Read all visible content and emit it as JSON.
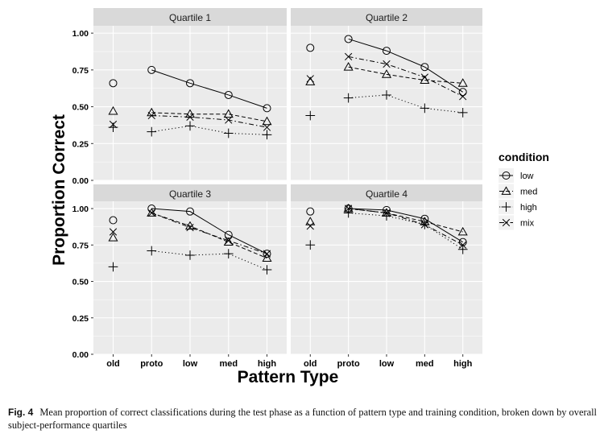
{
  "figure": {
    "caption_label": "Fig. 4",
    "caption_text": "Mean proportion of correct classifications during the test phase as a function of pattern type and training condition, broken down by overall subject-performance quartiles"
  },
  "chart_data": {
    "type": "line",
    "xlabel": "Pattern Type",
    "ylabel": "Proportion Correct",
    "categories": [
      "old",
      "proto",
      "low",
      "med",
      "high"
    ],
    "ylim": [
      0,
      1.05
    ],
    "yticks": [
      "0.00",
      "0.25",
      "0.50",
      "0.75",
      "1.00"
    ],
    "grid": true,
    "legend": {
      "title": "condition",
      "position": "right",
      "entries": [
        "low",
        "med",
        "high",
        "mix"
      ]
    },
    "series_styles": {
      "low": {
        "marker": "circle",
        "line": "solid"
      },
      "med": {
        "marker": "triangle",
        "line": "dashed"
      },
      "high": {
        "marker": "plus",
        "line": "dotted"
      },
      "mix": {
        "marker": "cross",
        "line": "dashdot"
      }
    },
    "colors": {
      "panel": "#ebebeb",
      "strip": "#d9d9d9",
      "grid": "#ffffff",
      "ink": "#000000"
    },
    "panels": [
      {
        "title": "Quartile 1",
        "series": [
          {
            "name": "low",
            "values": [
              0.66,
              0.75,
              0.66,
              0.58,
              0.49
            ]
          },
          {
            "name": "med",
            "values": [
              0.47,
              0.46,
              0.45,
              0.45,
              0.4
            ]
          },
          {
            "name": "high",
            "values": [
              0.36,
              0.33,
              0.37,
              0.32,
              0.31
            ]
          },
          {
            "name": "mix",
            "values": [
              0.38,
              0.44,
              0.43,
              0.41,
              0.36
            ]
          }
        ]
      },
      {
        "title": "Quartile 2",
        "series": [
          {
            "name": "low",
            "values": [
              0.9,
              0.96,
              0.88,
              0.77,
              0.6
            ]
          },
          {
            "name": "med",
            "values": [
              0.67,
              0.77,
              0.72,
              0.68,
              0.66
            ]
          },
          {
            "name": "high",
            "values": [
              0.44,
              0.56,
              0.58,
              0.49,
              0.46
            ]
          },
          {
            "name": "mix",
            "values": [
              0.69,
              0.84,
              0.79,
              0.7,
              0.57
            ]
          }
        ]
      },
      {
        "title": "Quartile 3",
        "series": [
          {
            "name": "low",
            "values": [
              0.92,
              1.0,
              0.98,
              0.82,
              0.69
            ]
          },
          {
            "name": "med",
            "values": [
              0.8,
              0.97,
              0.88,
              0.77,
              0.66
            ]
          },
          {
            "name": "high",
            "values": [
              0.6,
              0.71,
              0.68,
              0.69,
              0.58
            ]
          },
          {
            "name": "mix",
            "values": [
              0.84,
              0.97,
              0.87,
              0.78,
              0.69
            ]
          }
        ]
      },
      {
        "title": "Quartile 4",
        "series": [
          {
            "name": "low",
            "values": [
              0.98,
              1.0,
              0.99,
              0.93,
              0.77
            ]
          },
          {
            "name": "med",
            "values": [
              0.91,
              1.0,
              0.97,
              0.91,
              0.84
            ]
          },
          {
            "name": "high",
            "values": [
              0.75,
              0.97,
              0.95,
              0.89,
              0.72
            ]
          },
          {
            "name": "mix",
            "values": [
              0.88,
              1.0,
              0.97,
              0.89,
              0.75
            ]
          }
        ]
      }
    ]
  }
}
